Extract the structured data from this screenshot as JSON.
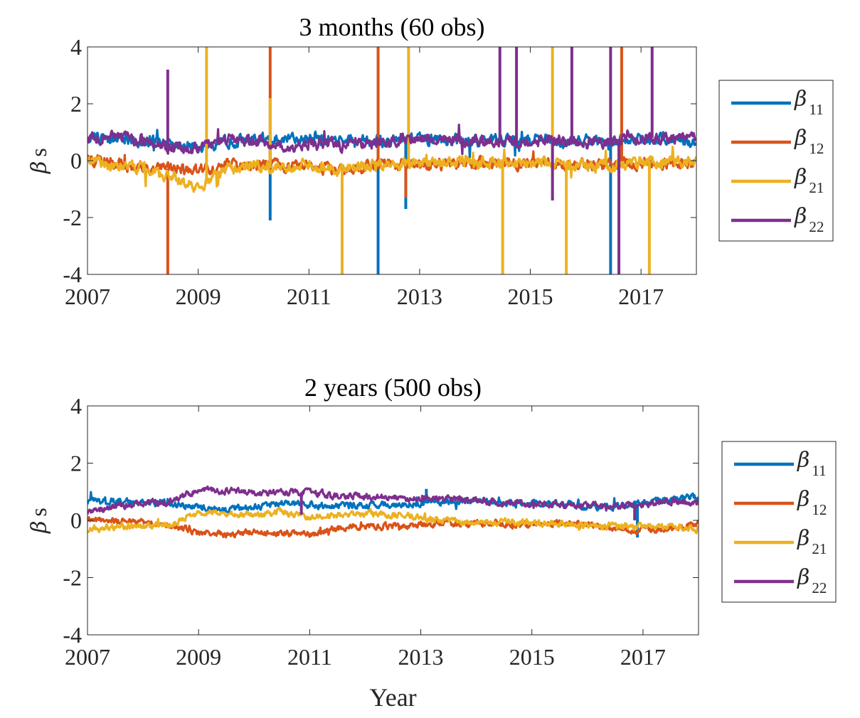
{
  "chart_data": [
    {
      "type": "line",
      "title": "3 months (60 obs)",
      "xlabel": "",
      "ylabel": "β s",
      "ylabel_symbol": "β",
      "ylabel_text": "s",
      "xlim": [
        2007,
        2018
      ],
      "ylim": [
        -4,
        4
      ],
      "xticks": [
        2007,
        2009,
        2011,
        2013,
        2015,
        2017
      ],
      "yticks": [
        4,
        2,
        0,
        -2,
        -4
      ],
      "xtick_labels": [
        "2007",
        "2009",
        "2011",
        "2013",
        "2015",
        "2017"
      ],
      "ytick_labels": [
        "4",
        "2",
        "0",
        "-2",
        "-4"
      ],
      "legend_position": "outside-right",
      "series": [
        {
          "name": "β 11",
          "symbol": "β",
          "subscript": "11",
          "color": "#0072BD",
          "x": [
            2007.0,
            2007.5,
            2008.0,
            2008.5,
            2009.0,
            2009.5,
            2010.0,
            2010.5,
            2011.0,
            2011.5,
            2012.0,
            2012.5,
            2013.0,
            2013.5,
            2014.0,
            2014.5,
            2015.0,
            2015.5,
            2016.0,
            2016.5,
            2017.0,
            2017.5,
            2018.0
          ],
          "y": [
            0.8,
            0.75,
            0.7,
            0.6,
            0.5,
            0.7,
            0.75,
            0.8,
            0.75,
            0.7,
            0.7,
            0.7,
            0.75,
            0.7,
            0.7,
            0.75,
            0.75,
            0.7,
            0.7,
            0.7,
            0.75,
            0.8,
            0.6
          ],
          "spikes": [
            {
              "x": 2010.3,
              "y": -2.1
            },
            {
              "x": 2012.25,
              "y": -4
            },
            {
              "x": 2012.75,
              "y": -1.7
            },
            {
              "x": 2016.45,
              "y": -4
            }
          ]
        },
        {
          "name": "β 12",
          "symbol": "β",
          "subscript": "12",
          "color": "#D95319",
          "x": [
            2007.0,
            2007.5,
            2008.0,
            2008.5,
            2009.0,
            2009.5,
            2010.0,
            2010.5,
            2011.0,
            2011.5,
            2012.0,
            2012.5,
            2013.0,
            2013.5,
            2014.0,
            2014.5,
            2015.0,
            2015.5,
            2016.0,
            2016.5,
            2017.0,
            2017.5,
            2018.0
          ],
          "y": [
            0.05,
            -0.1,
            -0.2,
            -0.3,
            -0.3,
            -0.2,
            -0.1,
            -0.2,
            -0.15,
            -0.3,
            -0.2,
            -0.15,
            -0.1,
            -0.1,
            -0.1,
            -0.05,
            -0.1,
            -0.1,
            -0.2,
            -0.1,
            -0.1,
            -0.1,
            -0.05
          ],
          "spikes": [
            {
              "x": 2008.45,
              "y": -4
            },
            {
              "x": 2010.3,
              "y": 4
            },
            {
              "x": 2012.25,
              "y": 4
            },
            {
              "x": 2012.75,
              "y": -1.3
            },
            {
              "x": 2016.65,
              "y": 4
            }
          ]
        },
        {
          "name": "β 21",
          "symbol": "β",
          "subscript": "21",
          "color": "#EDB120",
          "x": [
            2007.0,
            2007.5,
            2008.0,
            2008.5,
            2009.0,
            2009.5,
            2010.0,
            2010.5,
            2011.0,
            2011.5,
            2012.0,
            2012.5,
            2013.0,
            2013.5,
            2014.0,
            2014.5,
            2015.0,
            2015.5,
            2016.0,
            2016.5,
            2017.0,
            2017.5,
            2018.0
          ],
          "y": [
            0.0,
            -0.2,
            -0.3,
            -0.6,
            -0.9,
            -0.3,
            -0.2,
            -0.3,
            -0.1,
            -0.3,
            -0.2,
            -0.1,
            -0.1,
            -0.05,
            0.0,
            -0.05,
            -0.1,
            -0.1,
            -0.2,
            -0.2,
            0.0,
            0.0,
            -0.05
          ],
          "spikes": [
            {
              "x": 2009.15,
              "y": 4
            },
            {
              "x": 2010.3,
              "y": 2.2
            },
            {
              "x": 2011.6,
              "y": -4
            },
            {
              "x": 2012.8,
              "y": 4
            },
            {
              "x": 2014.5,
              "y": -4
            },
            {
              "x": 2015.4,
              "y": 4
            },
            {
              "x": 2015.65,
              "y": -4
            },
            {
              "x": 2017.15,
              "y": -4
            }
          ]
        },
        {
          "name": "β 22",
          "symbol": "β",
          "subscript": "22",
          "color": "#7E2F8E",
          "x": [
            2007.0,
            2007.5,
            2008.0,
            2008.5,
            2009.0,
            2009.5,
            2010.0,
            2010.5,
            2011.0,
            2011.5,
            2012.0,
            2012.5,
            2013.0,
            2013.5,
            2014.0,
            2014.5,
            2015.0,
            2015.5,
            2016.0,
            2016.5,
            2017.0,
            2017.5,
            2018.0
          ],
          "y": [
            0.8,
            0.85,
            0.7,
            0.5,
            0.4,
            0.8,
            0.7,
            0.5,
            0.6,
            0.55,
            0.6,
            0.7,
            0.8,
            0.75,
            0.7,
            0.7,
            0.6,
            0.7,
            0.6,
            0.7,
            0.8,
            0.8,
            0.75
          ],
          "spikes": [
            {
              "x": 2008.45,
              "y": 3.2
            },
            {
              "x": 2014.45,
              "y": 4
            },
            {
              "x": 2014.75,
              "y": 4
            },
            {
              "x": 2015.4,
              "y": -1.4
            },
            {
              "x": 2015.75,
              "y": 4
            },
            {
              "x": 2016.45,
              "y": 4
            },
            {
              "x": 2016.6,
              "y": -4
            },
            {
              "x": 2017.2,
              "y": 4
            }
          ]
        }
      ]
    },
    {
      "type": "line",
      "title": "2 years (500 obs)",
      "xlabel": "Year",
      "ylabel": "β s",
      "ylabel_symbol": "β",
      "ylabel_text": "s",
      "xlim": [
        2007,
        2018
      ],
      "ylim": [
        -4,
        4
      ],
      "xticks": [
        2007,
        2009,
        2011,
        2013,
        2015,
        2017
      ],
      "yticks": [
        4,
        2,
        0,
        -2,
        -4
      ],
      "xtick_labels": [
        "2007",
        "2009",
        "2011",
        "2013",
        "2015",
        "2017"
      ],
      "ytick_labels": [
        "4",
        "2",
        "0",
        "-2",
        "-4"
      ],
      "legend_position": "outside-right",
      "series": [
        {
          "name": "β 11",
          "symbol": "β",
          "subscript": "11",
          "color": "#0072BD",
          "x": [
            2007.0,
            2007.5,
            2008.0,
            2008.5,
            2009.0,
            2009.5,
            2010.0,
            2010.5,
            2011.0,
            2011.5,
            2012.0,
            2012.5,
            2013.0,
            2013.5,
            2014.0,
            2014.5,
            2015.0,
            2015.5,
            2016.0,
            2016.5,
            2017.0,
            2017.5,
            2018.0
          ],
          "y": [
            0.65,
            0.7,
            0.65,
            0.6,
            0.45,
            0.4,
            0.45,
            0.6,
            0.55,
            0.5,
            0.55,
            0.55,
            0.6,
            0.65,
            0.7,
            0.6,
            0.6,
            0.6,
            0.5,
            0.5,
            0.6,
            0.75,
            0.85
          ],
          "spikes": [
            {
              "x": 2016.9,
              "y": -0.6
            },
            {
              "x": 2013.1,
              "y": 1.1
            }
          ]
        },
        {
          "name": "β 12",
          "symbol": "β",
          "subscript": "12",
          "color": "#D95319",
          "x": [
            2007.0,
            2007.5,
            2008.0,
            2008.5,
            2009.0,
            2009.5,
            2010.0,
            2010.5,
            2011.0,
            2011.5,
            2012.0,
            2012.5,
            2013.0,
            2013.5,
            2014.0,
            2014.5,
            2015.0,
            2015.5,
            2016.0,
            2016.5,
            2017.0,
            2017.5,
            2018.0
          ],
          "y": [
            0.05,
            0.0,
            -0.1,
            -0.15,
            -0.45,
            -0.5,
            -0.4,
            -0.45,
            -0.5,
            -0.3,
            -0.2,
            -0.2,
            -0.15,
            -0.1,
            -0.1,
            -0.1,
            -0.15,
            -0.1,
            -0.15,
            -0.25,
            -0.35,
            -0.3,
            -0.05
          ],
          "spikes": []
        },
        {
          "name": "β 21",
          "symbol": "β",
          "subscript": "21",
          "color": "#EDB120",
          "x": [
            2007.0,
            2007.5,
            2008.0,
            2008.5,
            2009.0,
            2009.5,
            2010.0,
            2010.5,
            2011.0,
            2011.5,
            2012.0,
            2012.5,
            2013.0,
            2013.5,
            2014.0,
            2014.5,
            2015.0,
            2015.5,
            2016.0,
            2016.5,
            2017.0,
            2017.5,
            2018.0
          ],
          "y": [
            -0.3,
            -0.25,
            -0.2,
            -0.15,
            0.25,
            0.25,
            0.15,
            0.3,
            0.1,
            0.2,
            0.25,
            0.2,
            0.1,
            0.0,
            -0.1,
            -0.05,
            -0.1,
            -0.1,
            -0.2,
            -0.2,
            -0.25,
            -0.2,
            -0.3
          ],
          "spikes": []
        },
        {
          "name": "β 22",
          "symbol": "β",
          "subscript": "22",
          "color": "#7E2F8E",
          "x": [
            2007.0,
            2007.5,
            2008.0,
            2008.5,
            2009.0,
            2009.5,
            2010.0,
            2010.5,
            2011.0,
            2011.5,
            2012.0,
            2012.5,
            2013.0,
            2013.5,
            2014.0,
            2014.5,
            2015.0,
            2015.5,
            2016.0,
            2016.5,
            2017.0,
            2017.5,
            2018.0
          ],
          "y": [
            0.3,
            0.5,
            0.6,
            0.65,
            1.1,
            1.0,
            1.0,
            0.95,
            1.0,
            0.85,
            0.85,
            0.8,
            0.75,
            0.75,
            0.7,
            0.6,
            0.6,
            0.55,
            0.55,
            0.5,
            0.55,
            0.65,
            0.6
          ],
          "spikes": [
            {
              "x": 2010.85,
              "y": 0.2
            },
            {
              "x": 2016.85,
              "y": 0.0
            }
          ]
        }
      ]
    }
  ]
}
